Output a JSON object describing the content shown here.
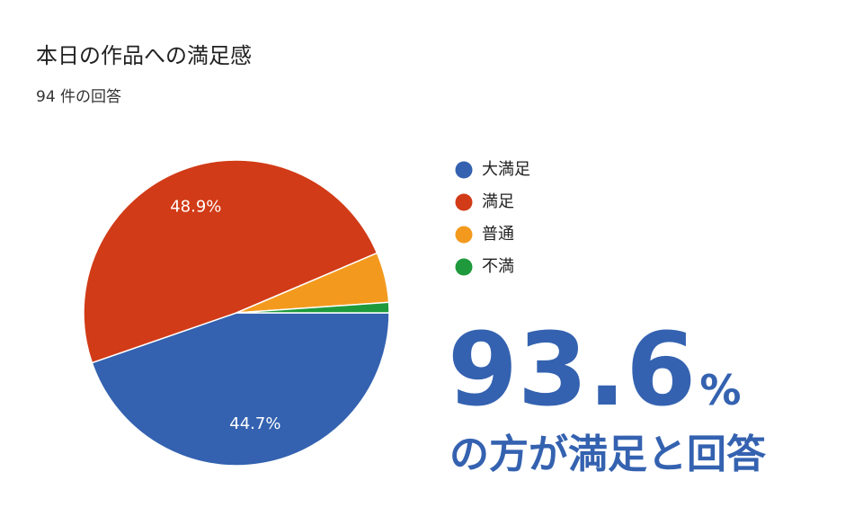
{
  "chart_data": {
    "type": "pie",
    "title": "本日の作品への満足感",
    "subtitle": "94 件の回答",
    "categories": [
      "大満足",
      "満足",
      "普通",
      "不満"
    ],
    "values": [
      44.7,
      48.9,
      5.3,
      1.1
    ],
    "value_labels": [
      "44.7%",
      "48.9%",
      null,
      null
    ],
    "colors": [
      "#3462b0",
      "#d13b17",
      "#f39a1e",
      "#1e9a3c"
    ],
    "legend": "right",
    "annotation": {
      "number": "93.6",
      "unit": "%",
      "text": "の方が満足と回答"
    }
  }
}
